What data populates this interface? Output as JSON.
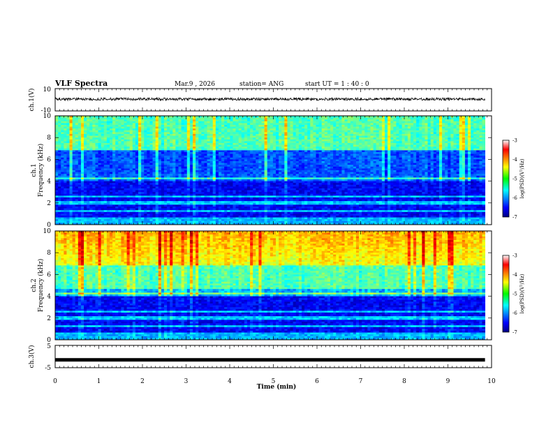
{
  "header": {
    "title": "VLF Spectra",
    "date": "Mar.9 , 2026",
    "station": "station= ANG",
    "start_time": "start UT = 1 : 40 : 0"
  },
  "chart_data": [
    {
      "type": "line",
      "panel": "ch1-waveform",
      "ylabel": "ch.1(V)",
      "ylim": [
        -10,
        10
      ],
      "y_tick_labels": [
        "10",
        "-10"
      ],
      "baseline": 0,
      "noise_amplitude": 1.2
    },
    {
      "type": "heatmap",
      "panel": "ch1-spectrogram",
      "ylabel": "ch.1 Frequency (kHz)",
      "ylim": [
        0,
        10
      ],
      "y_tick_labels": [
        "0",
        "2",
        "4",
        "6",
        "8",
        "10"
      ],
      "colorbar": {
        "label": "log(PSD)(V²/Hz)",
        "range": [
          -7,
          -3
        ],
        "tick_labels": [
          "-3",
          "-4",
          "-5",
          "-6",
          "-7"
        ]
      }
    },
    {
      "type": "heatmap",
      "panel": "ch2-spectrogram",
      "ylabel": "ch.2 Frequency (kHz)",
      "ylim": [
        0,
        10
      ],
      "y_tick_labels": [
        "0",
        "2",
        "4",
        "6",
        "8",
        "10"
      ],
      "colorbar": {
        "label": "log(PSD)(V²/Hz)",
        "range": [
          -7,
          -3
        ],
        "tick_labels": [
          "-3",
          "-4",
          "-5",
          "-6",
          "-7"
        ]
      }
    },
    {
      "type": "line",
      "panel": "ch3-waveform",
      "ylabel": "ch.3(V)",
      "ylim": [
        -5,
        5
      ],
      "y_tick_labels": [
        "5",
        "-5"
      ],
      "baseline": -1.5
    }
  ],
  "x_axis": {
    "label": "Time (min)",
    "range": [
      0,
      10
    ],
    "tick_labels": [
      "0",
      "1",
      "2",
      "3",
      "4",
      "5",
      "6",
      "7",
      "8",
      "9",
      "10"
    ],
    "data_end": 9.85
  }
}
